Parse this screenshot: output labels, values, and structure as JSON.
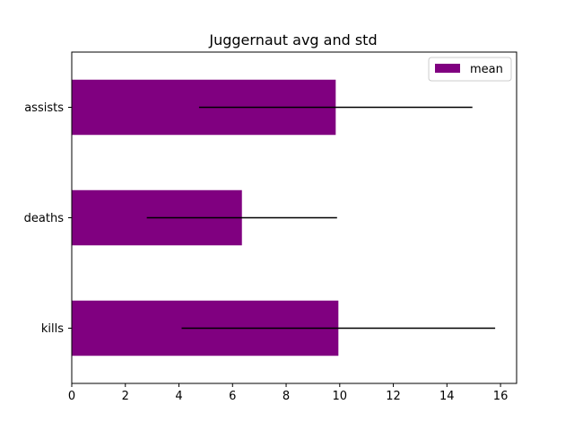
{
  "chart_data": {
    "type": "bar",
    "orientation": "horizontal",
    "title": "Juggernaut avg and std",
    "xlabel": "",
    "ylabel": "",
    "categories": [
      "kills",
      "deaths",
      "assists"
    ],
    "series": [
      {
        "name": "mean",
        "values": [
          9.95,
          6.35,
          9.85
        ],
        "error": [
          5.85,
          3.55,
          5.1
        ],
        "color": "#800080"
      }
    ],
    "xlim": [
      0,
      16.6
    ],
    "xticks": [
      0,
      2,
      4,
      6,
      8,
      10,
      12,
      14,
      16
    ],
    "grid": false,
    "legend": "top-right",
    "error_bar_color": "#000000"
  }
}
